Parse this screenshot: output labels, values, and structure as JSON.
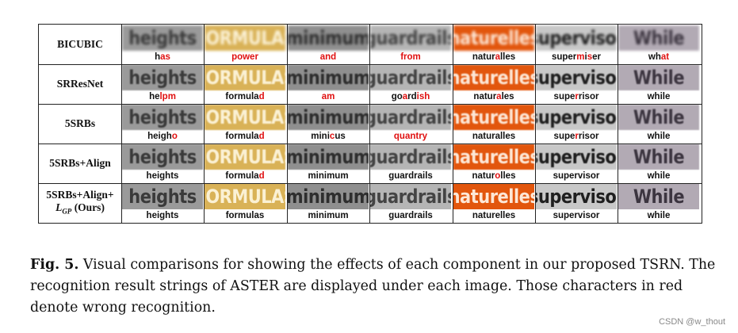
{
  "columns": [
    {
      "word": "heights",
      "bg": "#9a9a9a",
      "fg": "#3a3a3a"
    },
    {
      "word": "FORMULAS",
      "bg": "#d9b257",
      "fg": "#fbf1d4"
    },
    {
      "word": "minimum",
      "bg": "#8f8f8f",
      "fg": "#2e2e2e"
    },
    {
      "word": "guardrails",
      "bg": "#b5b5b5",
      "fg": "#444444"
    },
    {
      "word": "naturelles",
      "bg": "#e2560d",
      "fg": "#fde7d6"
    },
    {
      "word": "supervisor",
      "bg": "#c8c8c8",
      "fg": "#1f1f1f"
    },
    {
      "word": "While",
      "bg": "#b2aab4",
      "fg": "#3c3540"
    }
  ],
  "rows": [
    {
      "label": "BICUBIC",
      "label_sub": "",
      "quality": "blur-hi",
      "results": [
        [
          [
            "h",
            "ok"
          ],
          [
            "as",
            "bad"
          ]
        ],
        [
          [
            "power",
            "bad"
          ]
        ],
        [
          [
            "and",
            "bad"
          ]
        ],
        [
          [
            "from",
            "bad"
          ]
        ],
        [
          [
            "natur",
            "ok"
          ],
          [
            "a",
            "bad"
          ],
          [
            "lles",
            "ok"
          ]
        ],
        [
          [
            "super",
            "ok"
          ],
          [
            "m",
            "bad"
          ],
          [
            "i",
            "ok"
          ],
          [
            "s",
            "bad"
          ],
          [
            "er",
            "ok"
          ]
        ],
        [
          [
            "wh",
            "ok"
          ],
          [
            "at",
            "bad"
          ]
        ]
      ]
    },
    {
      "label": "SRResNet",
      "label_sub": "",
      "quality": "blur-md",
      "results": [
        [
          [
            "he",
            "ok"
          ],
          [
            "lpm",
            "bad"
          ]
        ],
        [
          [
            "formula",
            "ok"
          ],
          [
            "d",
            "bad"
          ]
        ],
        [
          [
            "am",
            "bad"
          ]
        ],
        [
          [
            "go",
            "ok"
          ],
          [
            "a",
            "bad"
          ],
          [
            "rd",
            "ok"
          ],
          [
            "ish",
            "bad"
          ]
        ],
        [
          [
            "natur",
            "ok"
          ],
          [
            "a",
            "bad"
          ],
          [
            "les",
            "ok"
          ]
        ],
        [
          [
            "supe",
            "ok"
          ],
          [
            "r",
            "bad"
          ],
          [
            "risor",
            "ok"
          ]
        ],
        [
          [
            "while",
            "ok"
          ]
        ]
      ]
    },
    {
      "label": "5SRBs",
      "label_sub": "",
      "quality": "blur-md",
      "results": [
        [
          [
            "heigh",
            "ok"
          ],
          [
            "o",
            "bad"
          ]
        ],
        [
          [
            "formula",
            "ok"
          ],
          [
            "d",
            "bad"
          ]
        ],
        [
          [
            "mini",
            "ok"
          ],
          [
            "c",
            "bad"
          ],
          [
            "us",
            "ok"
          ]
        ],
        [
          [
            "quantry",
            "bad"
          ]
        ],
        [
          [
            "naturalles",
            "ok"
          ]
        ],
        [
          [
            "supe",
            "ok"
          ],
          [
            "r",
            "bad"
          ],
          [
            "risor",
            "ok"
          ]
        ],
        [
          [
            "while",
            "ok"
          ]
        ]
      ]
    },
    {
      "label": "5SRBs+Align",
      "label_sub": "",
      "quality": "blur-lo",
      "results": [
        [
          [
            "heights",
            "ok"
          ]
        ],
        [
          [
            "formula",
            "ok"
          ],
          [
            "d",
            "bad"
          ]
        ],
        [
          [
            "minimum",
            "ok"
          ]
        ],
        [
          [
            "guardrails",
            "ok"
          ]
        ],
        [
          [
            "natur",
            "ok"
          ],
          [
            "o",
            "bad"
          ],
          [
            "lles",
            "ok"
          ]
        ],
        [
          [
            "supervisor",
            "ok"
          ]
        ],
        [
          [
            "while",
            "ok"
          ]
        ]
      ]
    },
    {
      "label": "5SRBs+Align+",
      "label_sub": "L_GP (Ours)",
      "quality": "",
      "results": [
        [
          [
            "heights",
            "ok"
          ]
        ],
        [
          [
            "formulas",
            "ok"
          ]
        ],
        [
          [
            "minimum",
            "ok"
          ]
        ],
        [
          [
            "guardrails",
            "ok"
          ]
        ],
        [
          [
            "naturelles",
            "ok"
          ]
        ],
        [
          [
            "supervisor",
            "ok"
          ]
        ],
        [
          [
            "while",
            "ok"
          ]
        ]
      ]
    }
  ],
  "caption": {
    "fig_label": "Fig. 5.",
    "text": " Visual comparisons for showing the effects of each component in our proposed TSRN. The recognition result strings of ASTER are displayed under each image. Those characters in red denote wrong recognition."
  },
  "watermark": "CSDN @w_thout"
}
